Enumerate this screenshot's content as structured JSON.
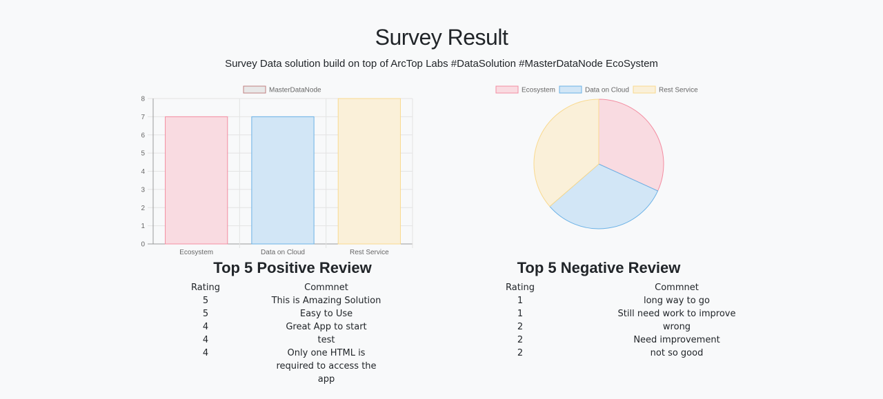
{
  "header": {
    "title": "Survey Result",
    "subtitle": "Survey Data solution build on top of ArcTop Labs #DataSolution #MasterDataNode EcoSystem"
  },
  "colors": {
    "ecosystem_fill": "#f9dbe1",
    "ecosystem_stroke": "#f38da1",
    "cloud_fill": "#d2e6f6",
    "cloud_stroke": "#6ab1e6",
    "rest_fill": "#faf0d9",
    "rest_stroke": "#f9d98e"
  },
  "chart_data": [
    {
      "type": "bar",
      "legend": [
        "MasterDataNode"
      ],
      "categories": [
        "Ecosystem",
        "Data on Cloud",
        "Rest Service"
      ],
      "series": [
        {
          "name": "MasterDataNode",
          "values": [
            7,
            7,
            8
          ]
        }
      ],
      "ylim": [
        0,
        8
      ],
      "yticks": [
        0,
        1,
        2,
        3,
        4,
        5,
        6,
        7,
        8
      ],
      "grid": true,
      "legend_position": "top"
    },
    {
      "type": "pie",
      "labels": [
        "Ecosystem",
        "Data on Cloud",
        "Rest Service"
      ],
      "values": [
        7,
        7,
        8
      ],
      "legend_position": "top"
    }
  ],
  "positive_reviews": {
    "title": "Top 5 Positive Review",
    "headers": {
      "rating": "Rating",
      "comment": "Commnet"
    },
    "rows": [
      {
        "rating": "5",
        "comment": "This is Amazing Solution"
      },
      {
        "rating": "5",
        "comment": "Easy to Use"
      },
      {
        "rating": "4",
        "comment": "Great App to start"
      },
      {
        "rating": "4",
        "comment": "test"
      },
      {
        "rating": "4",
        "comment": "Only one HTML is required to access the app"
      }
    ]
  },
  "negative_reviews": {
    "title": "Top 5 Negative Review",
    "headers": {
      "rating": "Rating",
      "comment": "Commnet"
    },
    "rows": [
      {
        "rating": "1",
        "comment": "long way to go"
      },
      {
        "rating": "1",
        "comment": "Still need work to improve"
      },
      {
        "rating": "2",
        "comment": "wrong"
      },
      {
        "rating": "2",
        "comment": "Need improvement"
      },
      {
        "rating": "2",
        "comment": "not so good"
      }
    ]
  }
}
